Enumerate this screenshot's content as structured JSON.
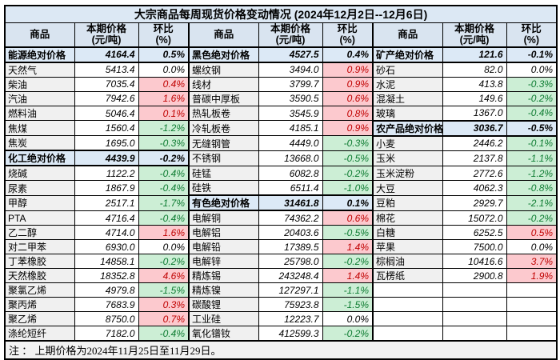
{
  "header": {
    "commodity": "商品",
    "price": "本期价格",
    "price_unit": "(元/吨)",
    "pct": "环比",
    "pct_unit": "(%)"
  },
  "note": "注 ： 上期价格为2024年11月25日至11月29日。",
  "colors": {
    "title_bg": "#dce8f4",
    "header_bg": "#d9e4f0",
    "section_bg": "#dce9f6",
    "name_bg": "#f0f0f0",
    "up_bg": "#fcc9ce",
    "up_text": "#c00000",
    "down_bg": "#cceed5",
    "down_text": "#0e7c32",
    "note_bg": "#f2f2f2",
    "grid": "#000000"
  },
  "chart_data": {
    "type": "table",
    "title": "大宗商品每周现货价格变动情况 (2024年12月2日--12月6日)",
    "columns": [
      "商品",
      "本期价格(元/吨)",
      "环比(%)"
    ],
    "column_groups": 3,
    "legend": {
      "up": "pink = 环比上涨",
      "down": "green = 环比下跌",
      "section": "blue = 分类绝对价格",
      "flat": "white = 持平"
    },
    "rows": [
      [
        {
          "name": "能源绝对价格",
          "price": "4164.4",
          "pct": "0.5%",
          "kind": "section"
        },
        {
          "name": "黑色绝对价格",
          "price": "4527.5",
          "pct": "0.4%",
          "kind": "section"
        },
        {
          "name": "矿产绝对价格",
          "price": "121.6",
          "pct": "-0.1%",
          "kind": "section"
        }
      ],
      [
        {
          "name": "天然气",
          "price": "5413.4",
          "pct": "0.0%",
          "kind": "flat"
        },
        {
          "name": "螺纹钢",
          "price": "3494.0",
          "pct": "0.9%",
          "kind": "up"
        },
        {
          "name": "砂石",
          "price": "82.0",
          "pct": "0.0%",
          "kind": "flat"
        }
      ],
      [
        {
          "name": "柴油",
          "price": "7035.4",
          "pct": "0.4%",
          "kind": "up"
        },
        {
          "name": "线材",
          "price": "3799.7",
          "pct": "0.9%",
          "kind": "up"
        },
        {
          "name": "水泥",
          "price": "413.8",
          "pct": "-0.3%",
          "kind": "down"
        }
      ],
      [
        {
          "name": "汽油",
          "price": "7942.6",
          "pct": "1.6%",
          "kind": "up"
        },
        {
          "name": "普碳中厚板",
          "price": "3590.5",
          "pct": "0.6%",
          "kind": "up"
        },
        {
          "name": "混凝土",
          "price": "149.6",
          "pct": "-0.2%",
          "kind": "down"
        }
      ],
      [
        {
          "name": "燃料油",
          "price": "5046.4",
          "pct": "0.1%",
          "kind": "up"
        },
        {
          "name": "热轧板卷",
          "price": "3545.9",
          "pct": "0.8%",
          "kind": "up"
        },
        {
          "name": "玻璃",
          "price": "1367.0",
          "pct": "-0.4%",
          "kind": "down"
        }
      ],
      [
        {
          "name": "焦煤",
          "price": "1560.4",
          "pct": "-1.2%",
          "kind": "down"
        },
        {
          "name": "冷轧板卷",
          "price": "4185.1",
          "pct": "0.9%",
          "kind": "up"
        },
        {
          "name": "农产品绝对价格",
          "price": "3036.7",
          "pct": "-0.5%",
          "kind": "section"
        }
      ],
      [
        {
          "name": "焦炭",
          "price": "1695.0",
          "pct": "-0.3%",
          "kind": "down"
        },
        {
          "name": "无缝钢管",
          "price": "4449.0",
          "pct": "-0.3%",
          "kind": "down"
        },
        {
          "name": "小麦",
          "price": "2446.2",
          "pct": "-0.1%",
          "kind": "down"
        }
      ],
      [
        {
          "name": "化工绝对价格",
          "price": "4439.9",
          "pct": "-0.2%",
          "kind": "section"
        },
        {
          "name": "不锈钢",
          "price": "13668.0",
          "pct": "-0.5%",
          "kind": "down"
        },
        {
          "name": "玉米",
          "price": "2137.8",
          "pct": "-1.1%",
          "kind": "down"
        }
      ],
      [
        {
          "name": "烧碱",
          "price": "1122.2",
          "pct": "-0.4%",
          "kind": "down"
        },
        {
          "name": "硅锰",
          "price": "6082.8",
          "pct": "-0.2%",
          "kind": "down"
        },
        {
          "name": "玉米淀粉",
          "price": "2772.6",
          "pct": "-1.2%",
          "kind": "down"
        }
      ],
      [
        {
          "name": "尿素",
          "price": "1867.9",
          "pct": "-0.4%",
          "kind": "down"
        },
        {
          "name": "硅铁",
          "price": "6511.4",
          "pct": "-1.0%",
          "kind": "down"
        },
        {
          "name": "大豆",
          "price": "4062.3",
          "pct": "-0.8%",
          "kind": "down"
        }
      ],
      [
        {
          "name": "甲醇",
          "price": "2517.1",
          "pct": "-1.7%",
          "kind": "down"
        },
        {
          "name": "有色绝对价格",
          "price": "31461.8",
          "pct": "0.1%",
          "kind": "section"
        },
        {
          "name": "豆粕",
          "price": "2929.7",
          "pct": "-2.1%",
          "kind": "down"
        }
      ],
      [
        {
          "name": "PTA",
          "price": "4716.4",
          "pct": "-0.4%",
          "kind": "down"
        },
        {
          "name": "电解铜",
          "price": "74362.2",
          "pct": "0.6%",
          "kind": "up"
        },
        {
          "name": "棉花",
          "price": "15072.0",
          "pct": "-0.2%",
          "kind": "down"
        }
      ],
      [
        {
          "name": "乙二醇",
          "price": "4714.0",
          "pct": "1.6%",
          "kind": "up"
        },
        {
          "name": "电解铝",
          "price": "20403.6",
          "pct": "-0.5%",
          "kind": "down"
        },
        {
          "name": "白糖",
          "price": "6252.5",
          "pct": "0.5%",
          "kind": "up"
        }
      ],
      [
        {
          "name": "对二甲苯",
          "price": "6930.0",
          "pct": "0.0%",
          "kind": "flat"
        },
        {
          "name": "电解铅",
          "price": "17389.5",
          "pct": "1.4%",
          "kind": "up"
        },
        {
          "name": "苹果",
          "price": "7500.0",
          "pct": "0.0%",
          "kind": "flat"
        }
      ],
      [
        {
          "name": "丁苯橡胶",
          "price": "14858.1",
          "pct": "-0.2%",
          "kind": "down"
        },
        {
          "name": "电解锌",
          "price": "25798.0",
          "pct": "-0.2%",
          "kind": "down"
        },
        {
          "name": "棕榈油",
          "price": "10416.6",
          "pct": "3.7%",
          "kind": "up"
        }
      ],
      [
        {
          "name": "天然橡胶",
          "price": "18352.8",
          "pct": "4.6%",
          "kind": "up"
        },
        {
          "name": "精炼锡",
          "price": "243248.4",
          "pct": "1.4%",
          "kind": "up"
        },
        {
          "name": "瓦楞纸",
          "price": "2900.8",
          "pct": "1.9%",
          "kind": "up"
        }
      ],
      [
        {
          "name": "聚氯乙烯",
          "price": "4979.8",
          "pct": "-1.5%",
          "kind": "down"
        },
        {
          "name": "精炼镍",
          "price": "127297.1",
          "pct": "-1.1%",
          "kind": "down"
        },
        {
          "name": "",
          "price": "",
          "pct": "",
          "kind": "empty"
        }
      ],
      [
        {
          "name": "聚丙烯",
          "price": "7683.9",
          "pct": "0.3%",
          "kind": "up"
        },
        {
          "name": "碳酸锂",
          "price": "75923.8",
          "pct": "-1.5%",
          "kind": "down"
        },
        {
          "name": "",
          "price": "",
          "pct": "",
          "kind": "empty"
        }
      ],
      [
        {
          "name": "聚乙烯",
          "price": "8750.0",
          "pct": "0.7%",
          "kind": "up"
        },
        {
          "name": "工业硅",
          "price": "12223.7",
          "pct": "0.0%",
          "kind": "flat"
        },
        {
          "name": "",
          "price": "",
          "pct": "",
          "kind": "empty"
        }
      ],
      [
        {
          "name": "涤纶短纤",
          "price": "7182.0",
          "pct": "-0.4%",
          "kind": "down"
        },
        {
          "name": "氧化镨钕",
          "price": "412599.3",
          "pct": "-0.2%",
          "kind": "down"
        },
        {
          "name": "",
          "price": "",
          "pct": "",
          "kind": "empty"
        }
      ]
    ]
  }
}
